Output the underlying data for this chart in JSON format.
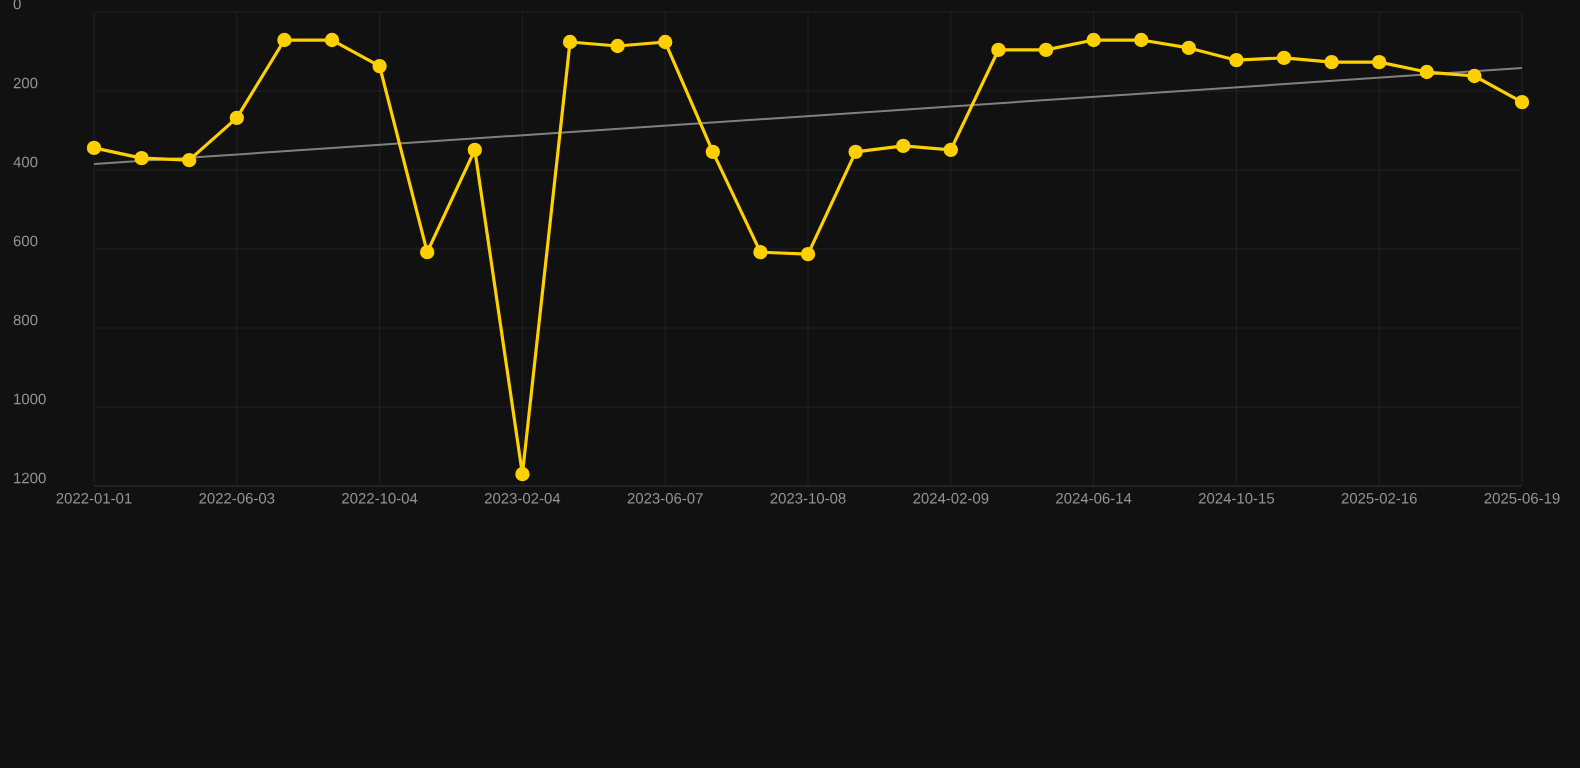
{
  "chart_data": {
    "type": "line",
    "categories": [
      "2022-01-01",
      null,
      null,
      "2022-06-03",
      null,
      null,
      "2022-10-04",
      null,
      null,
      "2023-02-04",
      null,
      null,
      "2023-06-07",
      null,
      null,
      "2023-10-08",
      null,
      null,
      "2024-02-09",
      null,
      null,
      "2024-06-14",
      null,
      null,
      "2024-10-15",
      null,
      null,
      "2025-02-16",
      null,
      null,
      "2025-06-19"
    ],
    "series": [
      {
        "color": "#ffd000",
        "marker": "circle",
        "values": [
          344,
          370,
          375,
          268,
          71,
          71,
          137,
          608,
          349,
          1170,
          76,
          86,
          76,
          354,
          608,
          613,
          354,
          339,
          349,
          96,
          96,
          71,
          71,
          91,
          122,
          116,
          127,
          127,
          152,
          162,
          228
        ]
      },
      {
        "color": "#808080",
        "marker": "none",
        "values": [
          385,
          null,
          null,
          null,
          null,
          null,
          null,
          null,
          null,
          null,
          null,
          null,
          null,
          null,
          null,
          null,
          null,
          null,
          null,
          null,
          null,
          null,
          null,
          null,
          null,
          null,
          null,
          null,
          null,
          null,
          142
        ]
      }
    ],
    "ylim": [
      1200,
      0
    ],
    "yticks": [
      0,
      200,
      400,
      600,
      800,
      1000,
      1200
    ],
    "grid": true,
    "line_style": "solid"
  }
}
